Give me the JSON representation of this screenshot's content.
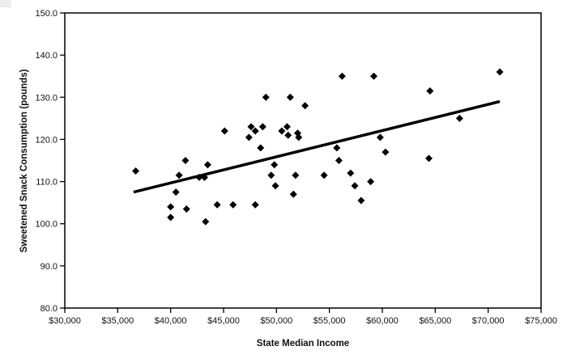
{
  "chart_data": {
    "type": "scatter",
    "title": "",
    "xlabel": "State Median Income",
    "ylabel": "Sweetened Snack Consumption (pounds)",
    "xlim": [
      30000,
      75000
    ],
    "ylim": [
      80,
      150
    ],
    "grid": false,
    "legend": null,
    "marker": {
      "shape": "diamond",
      "color": "#000000",
      "size": 9
    },
    "colors": {
      "background": "#ffffff",
      "axis": "#000000",
      "marker": "#000000",
      "trend_line": "#000000",
      "corner_artifact": "#ededed"
    },
    "x_ticks": [
      {
        "value": 30000,
        "label": "$30,000"
      },
      {
        "value": 35000,
        "label": "$35,000"
      },
      {
        "value": 40000,
        "label": "$40,000"
      },
      {
        "value": 45000,
        "label": "$45,000"
      },
      {
        "value": 50000,
        "label": "$50,000"
      },
      {
        "value": 55000,
        "label": "$55,000"
      },
      {
        "value": 60000,
        "label": "$60,000"
      },
      {
        "value": 65000,
        "label": "$65,000"
      },
      {
        "value": 70000,
        "label": "$70,000"
      },
      {
        "value": 75000,
        "label": "$75,000"
      }
    ],
    "y_ticks": [
      {
        "value": 150,
        "label": "150.0"
      },
      {
        "value": 140,
        "label": "140.0"
      },
      {
        "value": 130,
        "label": "130.0"
      },
      {
        "value": 120,
        "label": "120.0"
      },
      {
        "value": 110,
        "label": "110.0"
      },
      {
        "value": 100,
        "label": "100.0"
      },
      {
        "value": 90,
        "label": "90.0"
      },
      {
        "value": 80,
        "label": "80.0"
      }
    ],
    "points": [
      [
        36700,
        112.5
      ],
      [
        40000,
        104.0
      ],
      [
        40000,
        101.5
      ],
      [
        40500,
        107.5
      ],
      [
        40800,
        111.5
      ],
      [
        41400,
        115.0
      ],
      [
        41500,
        103.5
      ],
      [
        42700,
        111.0
      ],
      [
        43200,
        111.0
      ],
      [
        43300,
        100.5
      ],
      [
        43500,
        114.0
      ],
      [
        44400,
        104.5
      ],
      [
        45100,
        122.0
      ],
      [
        45900,
        104.5
      ],
      [
        47400,
        120.5
      ],
      [
        47600,
        123.0
      ],
      [
        48000,
        122.0
      ],
      [
        48000,
        104.5
      ],
      [
        48500,
        118.0
      ],
      [
        48700,
        123.0
      ],
      [
        49000,
        130.0
      ],
      [
        49500,
        111.5
      ],
      [
        49800,
        114.0
      ],
      [
        49900,
        109.0
      ],
      [
        50500,
        122.0
      ],
      [
        51000,
        123.0
      ],
      [
        51100,
        121.0
      ],
      [
        51300,
        130.0
      ],
      [
        51600,
        107.0
      ],
      [
        51800,
        111.5
      ],
      [
        52000,
        121.5
      ],
      [
        52100,
        120.5
      ],
      [
        52700,
        128.0
      ],
      [
        54500,
        111.5
      ],
      [
        55700,
        118.0
      ],
      [
        55900,
        115.0
      ],
      [
        56200,
        135.0
      ],
      [
        57000,
        112.0
      ],
      [
        57400,
        109.0
      ],
      [
        58000,
        105.5
      ],
      [
        58900,
        110.0
      ],
      [
        59200,
        135.0
      ],
      [
        59800,
        120.5
      ],
      [
        60300,
        117.0
      ],
      [
        64400,
        115.5
      ],
      [
        64500,
        131.5
      ],
      [
        67300,
        125.0
      ],
      [
        71100,
        136.0
      ]
    ],
    "trend_line": {
      "x1": 36500,
      "y1": 107.5,
      "x2": 71100,
      "y2": 129.0,
      "width": 3.5
    }
  }
}
